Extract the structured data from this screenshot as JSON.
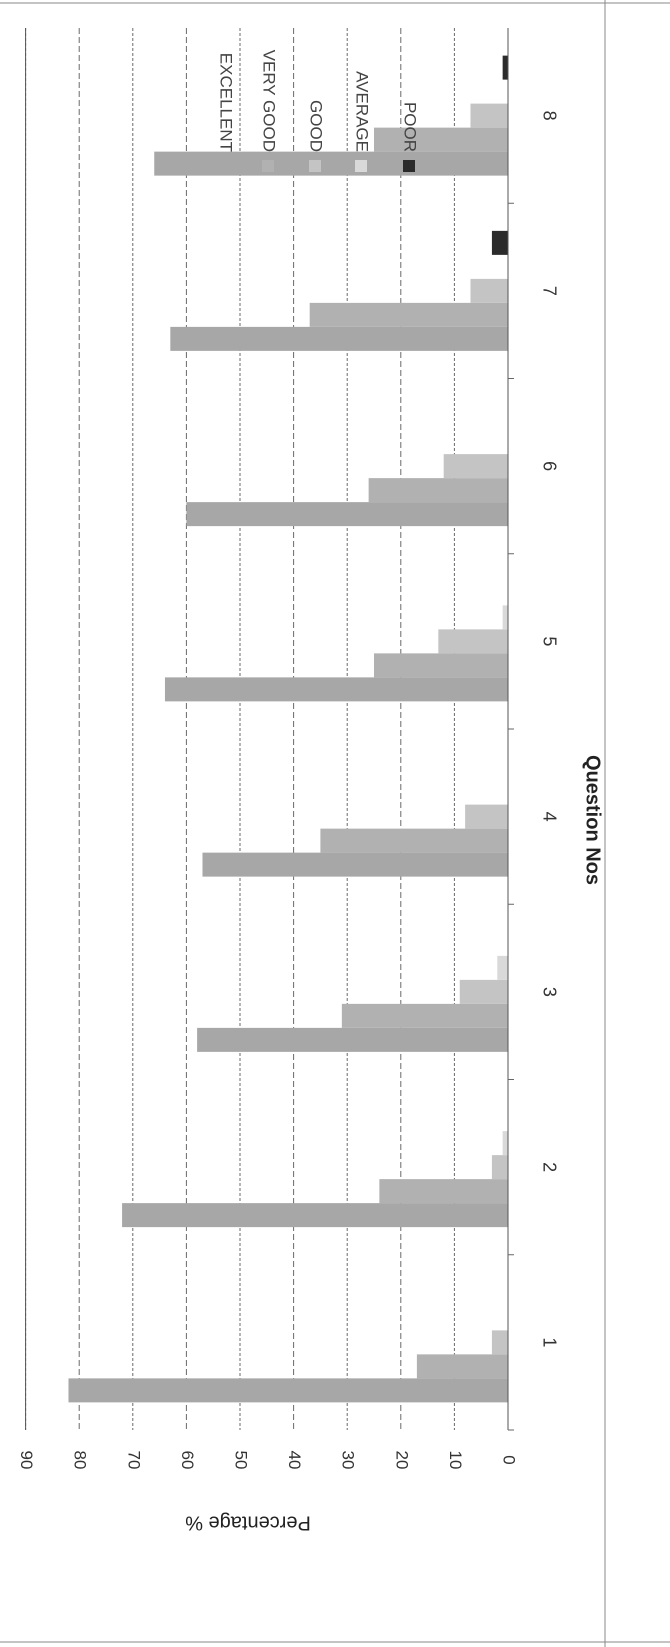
{
  "chart_data": {
    "type": "bar",
    "orientation": "rotated-90",
    "xlabel": "Question Nos",
    "ylabel": "Percentage %",
    "ylim": [
      0,
      90
    ],
    "ytick_labels": [
      "0",
      "10",
      "20",
      "30",
      "40",
      "50",
      "60",
      "70",
      "80",
      "90"
    ],
    "categories": [
      "1",
      "2",
      "3",
      "4",
      "5",
      "6",
      "7",
      "8"
    ],
    "grid": true,
    "legend_position": "right",
    "series": [
      {
        "name": "EXCELLENT",
        "color": "#a7a7a7",
        "values": [
          82,
          72,
          58,
          57,
          64,
          60,
          63,
          66
        ]
      },
      {
        "name": "VERY GOOD",
        "color": "#b1b1b1",
        "values": [
          17,
          24,
          31,
          35,
          25,
          26,
          37,
          25
        ]
      },
      {
        "name": "GOOD",
        "color": "#c4c4c4",
        "values": [
          3,
          3,
          9,
          8,
          13,
          12,
          7,
          7
        ]
      },
      {
        "name": "AVERAGE",
        "color": "#d9d9d9",
        "values": [
          0,
          1,
          2,
          0,
          1,
          0,
          0,
          0
        ]
      },
      {
        "name": "POOR",
        "color": "#2b2b2b",
        "values": [
          0,
          0,
          0,
          0,
          0,
          0,
          3,
          1
        ]
      }
    ]
  }
}
